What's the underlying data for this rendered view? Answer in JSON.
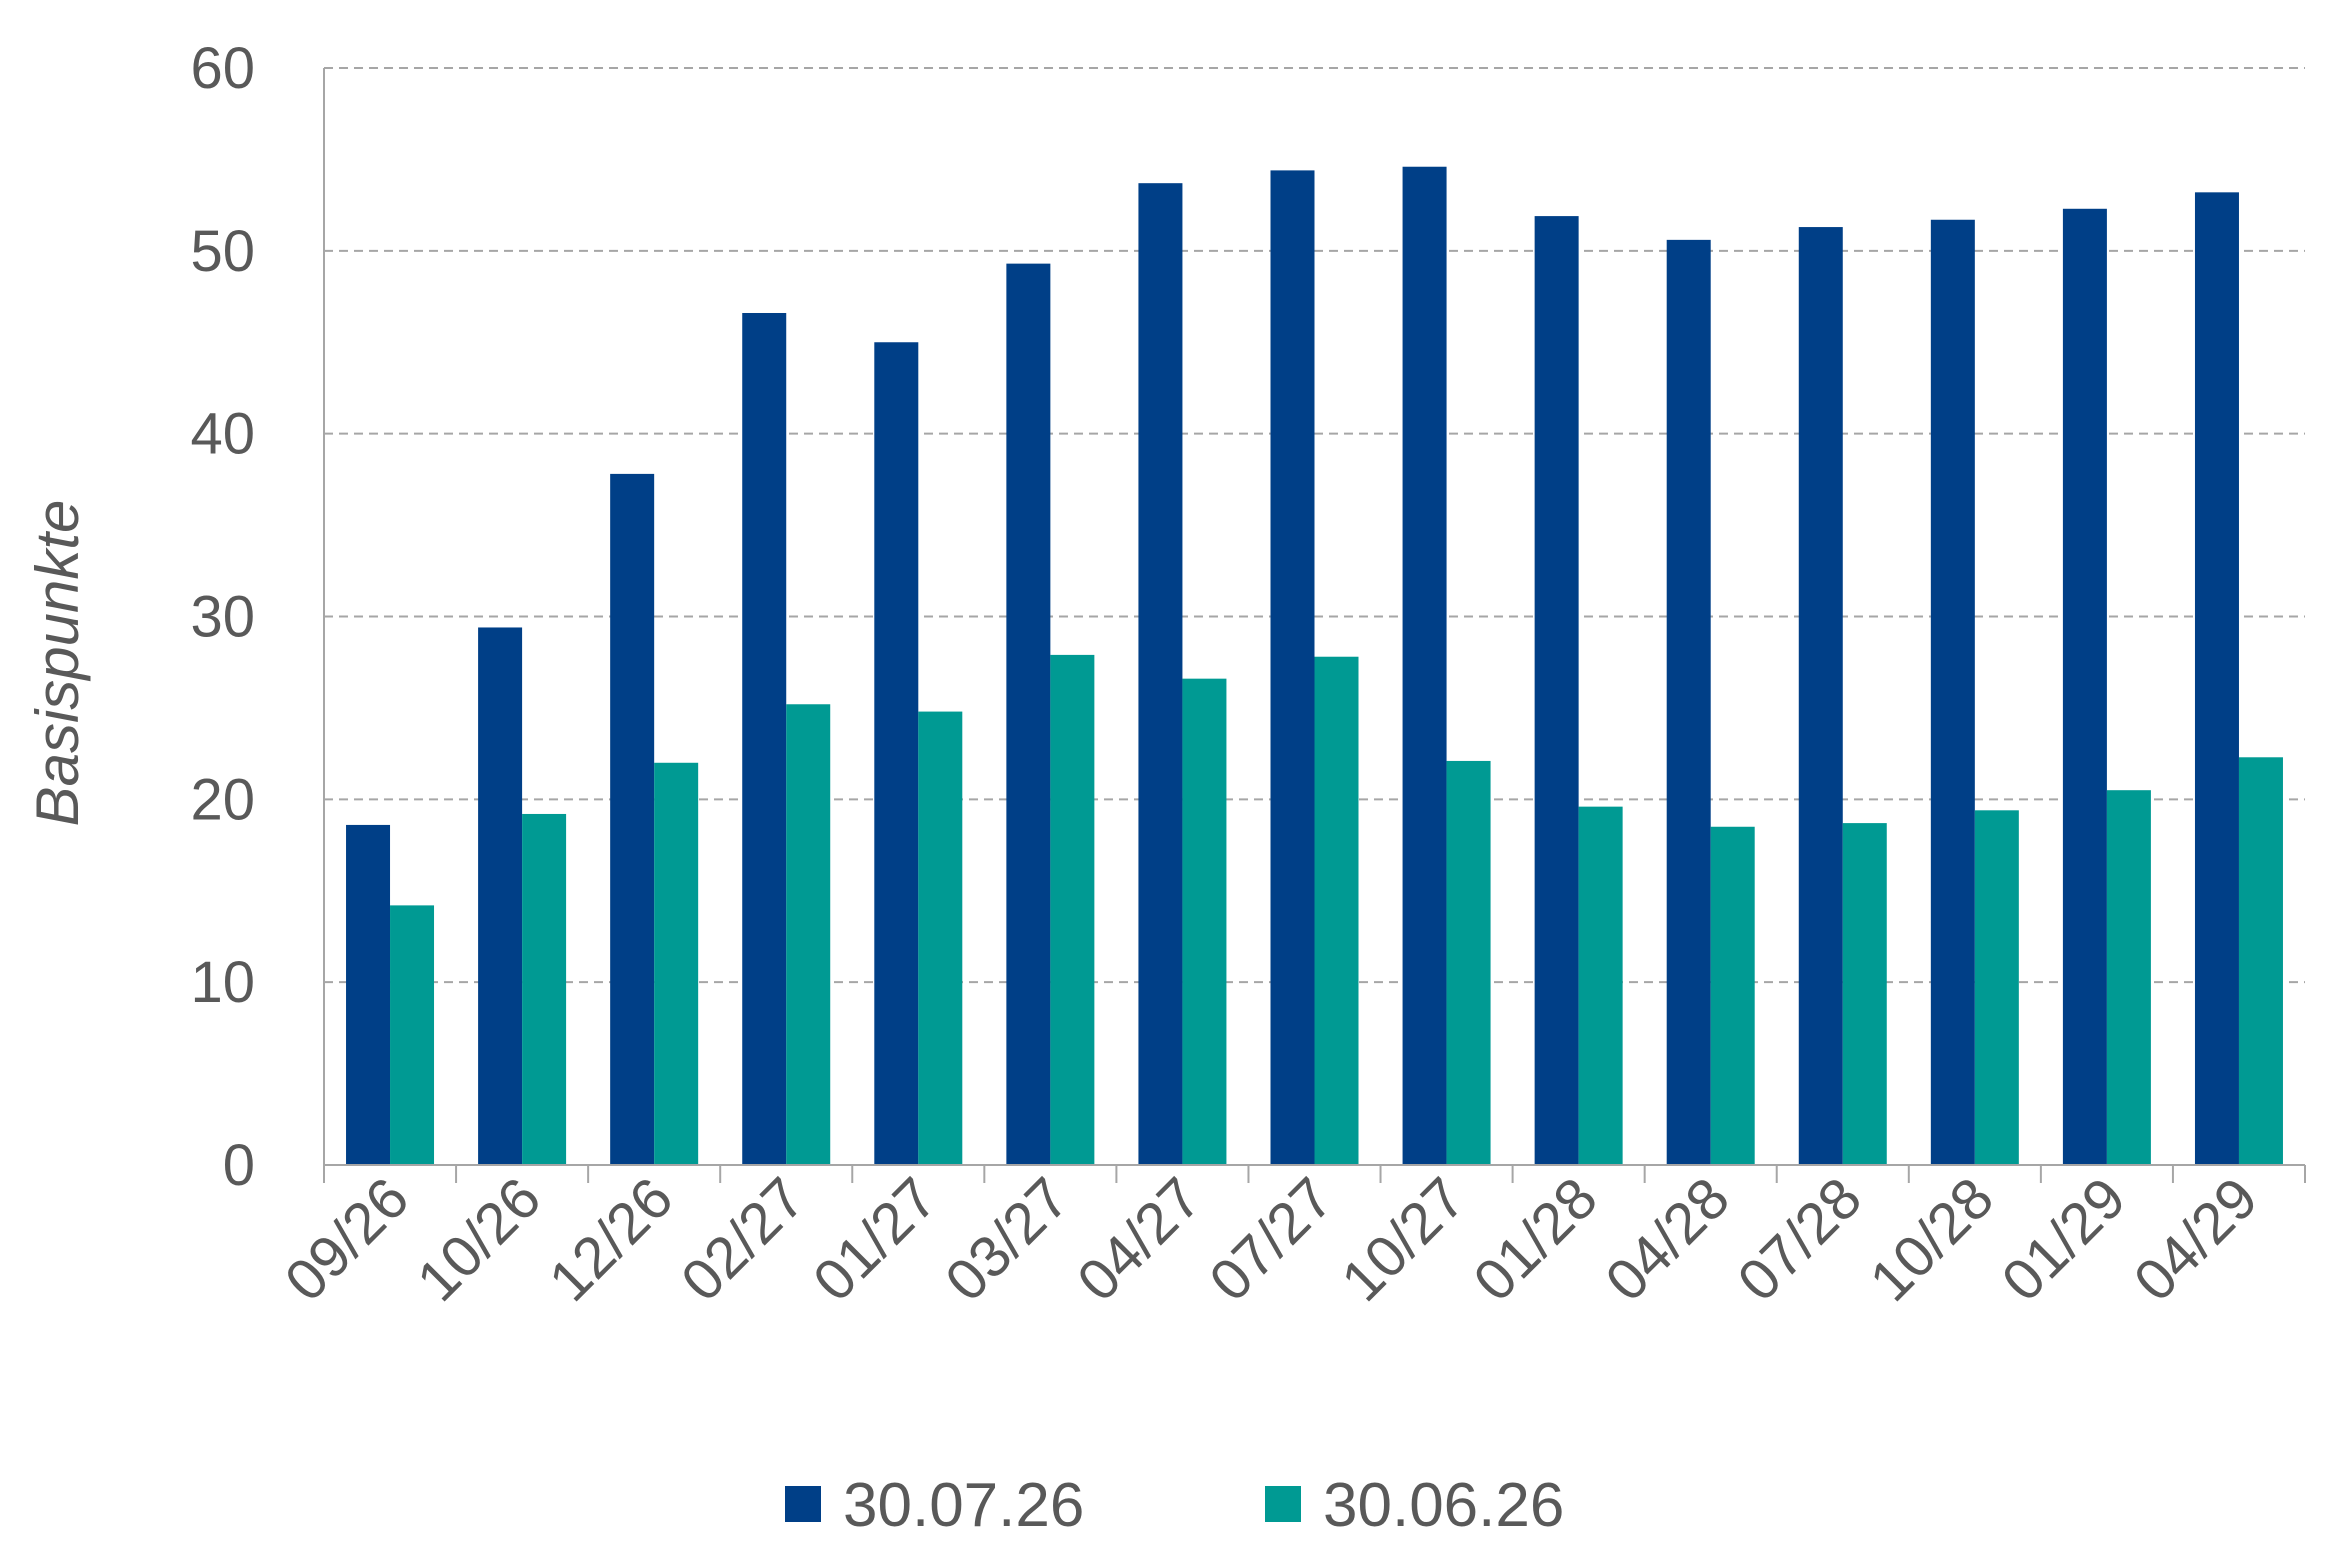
{
  "chart_data": {
    "type": "bar",
    "title": "",
    "xlabel": "",
    "ylabel": "Basispunkte",
    "ylim": [
      0,
      60
    ],
    "yticks": [
      0,
      10,
      20,
      30,
      40,
      50,
      60
    ],
    "grid": true,
    "legend_position": "bottom-center",
    "categories": [
      "09/26",
      "10/26",
      "12/26",
      "02/27",
      "01/27",
      "03/27",
      "04/27",
      "07/27",
      "10/27",
      "01/28",
      "04/28",
      "07/28",
      "10/28",
      "01/29",
      "04/29"
    ],
    "series": [
      {
        "name": "30.07.26",
        "color": "#003F87",
        "values": [
          18.6,
          29.4,
          37.8,
          46.6,
          45.0,
          49.3,
          53.7,
          54.4,
          54.6,
          51.9,
          50.6,
          51.3,
          51.7,
          52.3,
          53.2
        ]
      },
      {
        "name": "30.06.26",
        "color": "#009A93",
        "values": [
          14.2,
          19.2,
          22.0,
          25.2,
          24.8,
          27.9,
          26.6,
          27.8,
          22.1,
          19.6,
          18.5,
          18.7,
          19.4,
          20.5,
          22.3
        ]
      }
    ]
  }
}
